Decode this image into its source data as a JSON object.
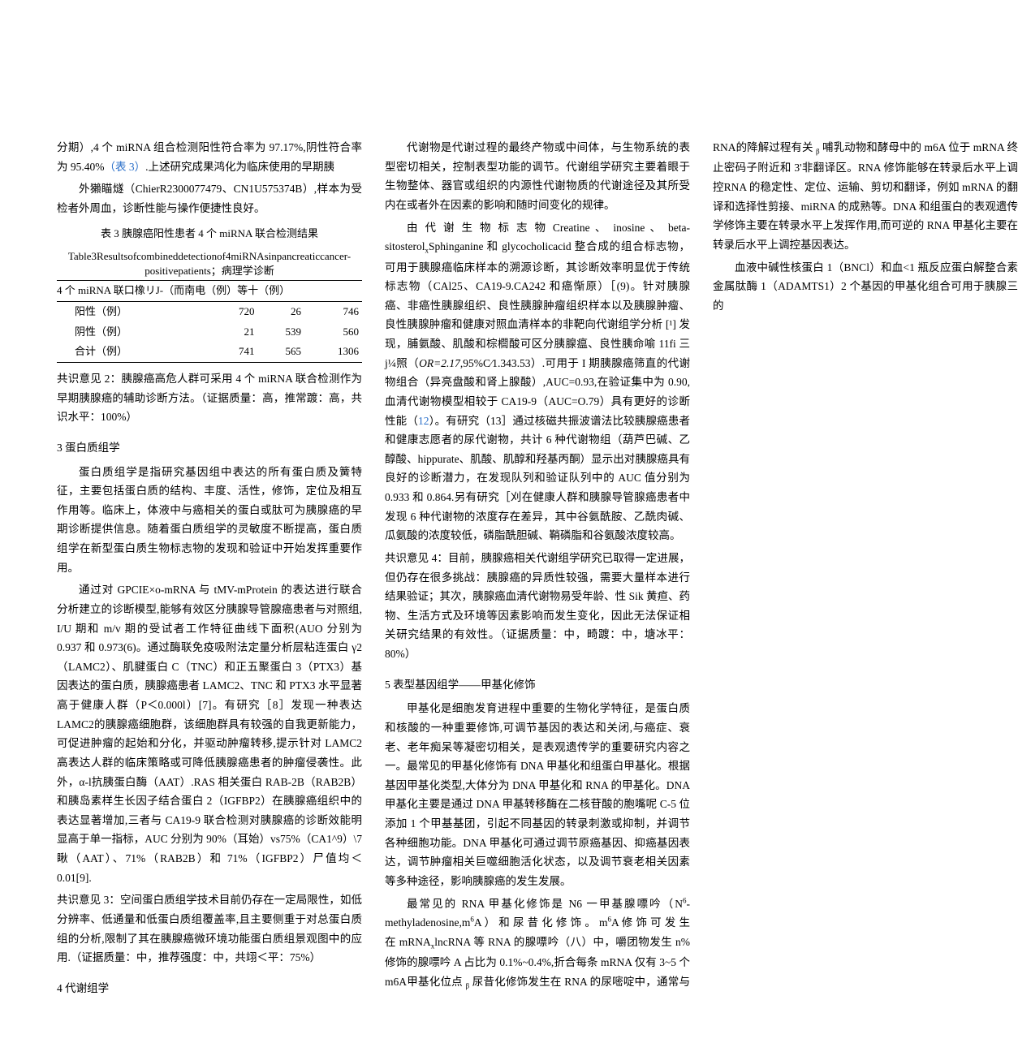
{
  "col1": {
    "p1a": "分期）,4 个 miRNA 组合检测阳性符合率为 97.17%,阴性符合率为 95.40%",
    "p1_link": "（表 3）",
    "p1b": ".上述研究成果鸿化为临床使用的早期胰",
    "p2": "外獺瞄燧（ChierR2300077479、CN1U575374B）,样本为受检者外周血，诊断性能与操作便捷性良好。",
    "table_caption1": "表 3 胰腺癌阳性患者 4 个 miRNA 联合检测结果",
    "table_caption2": "Table3Resultsofcombineddetectionof4miRNAsinpancreaticcancer-positivepatients；病理学诊断",
    "table_header": "4 个 miRNA 联口橡リJ-（而南电（例）等十（例）",
    "table": {
      "rows": [
        [
          "阳性（例）",
          "720",
          "26",
          "746"
        ],
        [
          "阴性（例）",
          "21",
          "539",
          "560"
        ],
        [
          "合计（例）",
          "741",
          "565",
          "1306"
        ]
      ]
    },
    "p3": "共识意见 2：胰腺癌高危人群可采用 4 个 miRNA 联合检测作为早期胰腺癌的辅助诊断方法。（证据质量：高，推常踱：高，共识水平：100%）",
    "h1": "3 蛋白质组学",
    "p4": "蛋白质组学是指研究基因组中表达的所有蛋白质及簧特征，主要包括蛋白质的结构、丰度、活性，修饰，定位及相互作用等。临床上，体液中与癌相关的蛋白或肽可为胰腺癌的早期诊断提供信息。随着蛋白质组学的灵敏度不断提高，蛋白质组学在新型蛋白质生物标志物的发现和验证中开始发挥重要作用。",
    "p5": "通过对 GPCIE×o-mRNA 与 tMV-mProtein 的表达进行联合分析建立的诊断模型,能够有效区分胰腺导管腺癌患者与对照组, I/U 期和 m/v 期的受试者工作特征曲线下面积(AUO 分别为 0.937 和 0.973(6)。通过酶联免疫吸附法定量分析层粘连蛋白 γ2（LAMC2）、肌腱蛋白 C（TNC）和正五聚蛋白 3（PTX3）基因表达的蛋白质，胰腺癌患者 LAMC2、TNC 和 PTX3 水平显著高于健康人群（P＜0.000l）[7]。有研究［8］发现一种表达 LAMC2的胰腺癌细胞群，该细胞群具有较强的自我更新能力，可促进肿瘤的起始和分化，并驱动肿瘤转移,提示针对 LAMC2 高表达人群的临床策略或可降低胰腺癌患者的肿瘤侵袭性。此外，α-l抗胰蛋白酶（AAT）.RAS 相关蛋白 RAB-2B（RAB2B）和胰岛素样生长因子结合蛋白 2（IGFBP2）在胰腺癌组织中的表达显著增加,三者与 CA19-9 联合检测对胰腺癌的诊断效能明显高于单一指标，AUC 分别为 90%（耳始）vs75%（CA1^9）\\7 瞅（AAT）、71%（RAB2B）和 71%（IGFBP2）尸值均＜0.01[9].",
    "p6": "共识意见 3：空间蛋白质组学技术目前仍存在一定局限性，如低分辨率、低通量和低蛋白质组覆盖率,且主要侧重于对总蛋白质组的分析,限制了其在胰腺癌微环境功能蛋白质组景观图中的应用.（证据质量：中，推荐强度：中，共翊＜平：75%）",
    "h2": "4 代谢组学",
    "p7": "代谢物是代谢过程的最终产物或中间体，与生物系统的表型密切相关，控制表型功能的调节。代谢组学研究主要着眼于生物整体、器官或组织的内源性代谢物质的代谢途径及其所受内在或者外在因素的影响和随时间变化的规律。"
  },
  "col2": {
    "p1a": "由 代 谢 生 物 标 志 物 Creatine 、 inosine 、 beta-sitosterol",
    "p1sub": "x",
    "p1b": "Sphinganine 和 glycocholicacid 整合成的组合标志物，可用于胰腺癌临床样本的溯源诊断，其诊断效率明显优于传统标志物（CAl25、CA19-9.CA242 和癌惭原）［(9)。针对胰腺癌、非癌性胰腺组织、良性胰腺肿瘤组织样本以及胰腺肿瘤、良性胰腺肿瘤和健康对照血清样本的非靶向代谢组学分析 [¹] 发现，脯氨酸、肌酸和棕櫚酸可区分胰腺瘟、良性胰命喻 11fi 三 j¼照（",
    "p1_or": "OR=2.17",
    "p1c": ",95%C∕1.343.53）.可用于 I 期胰腺癌筛直的代谢物组合（异亮盘酸和肾上腺酸）,AUC=0.93,在验证集中为 0.90,血清代谢物模型相较于 CA19-9（AUC=O.79）具有更好的诊断性能（",
    "p1_link": "12",
    "p1d": "）。有研究（13］通过核磁共振波谱法比较胰腺癌患者和健康志愿者的尿代谢物，共计 6 种代谢物组（葫芦巴碱、乙醇酸、hippurate、肌酸、肌醇和羟基丙酮）显示出对胰腺癌具有良好的诊断潜力，在发现队列和验证队列中的 AUC 值分别为 0.933 和 0.864.另有研究［刈在健康人群和胰腺导管腺癌患者中发现 6 种代谢物的浓度存在差异，其中谷氨酰胺、乙酰肉碱、瓜氨酸的浓度较低，磷脂酰胆碱、鞘磷脂和谷氨酸浓度较高。",
    "p2": "共识意见 4：目前，胰腺癌相关代谢组学研究已取得一定进展，但仍存在很多挑战：胰腺癌的异质性较强，需要大量样本进行结果验证；其次，胰腺癌血清代谢物易受年龄、性 Sik 黄疸、药物、生活方式及环境等因素影响而发生变化，因此无法保证相关研究结果的有效性。（证据质量：中，畸踱：中，塘冰平：80%）",
    "h1": "5 表型基因组学——甲基化修饰",
    "p3": "甲基化是细胞发育进程中重要的生物化学特征，是蛋白质和核酸的一种重要修饰,可调节基因的表达和关闭,与癌症、衰老、老年痴呆等凝密切相关，是表观遗传学的重要研究内容之一。最常见的甲基化修饰有 DNA 甲基化和组蛋白甲基化。根据基因甲基化类型,大体分为 DNA 甲基化和 RNA 的甲基化。DNA甲基化主要是通过 DNA 甲基转移酶在二核苷酸的胞嘴呢 C-5 位添加 1 个甲基基团，引起不同基因的转录刺激或抑制，并调节各种细胞功能。DNA 甲基化可通过调节原癌基因、抑癌基因表达，调节肿瘤相关巨噬细胞活化状态，以及调节衰老相关因素等多种途径，影响胰腺癌的发生发展。",
    "p4a": "最常见的 RNA 甲基化修饰是 N6 一甲基腺嘌吟（N",
    "p4sup1": "6",
    "p4b": "-methyladenosine,m",
    "p4sup2": "6",
    "p4c": "A ） 和 尿 昔 化 修 饰 。 m",
    "p4sup3": "6",
    "p4d": "A 修 饰 可 发 生 在 mRNA",
    "p4sub1": "x",
    "p4e": "lncRNA 等 RNA 的腺嘌吟（八）中，嚼团物发生 n%修饰的腺嘌吟 A 占比为 0.1%~0.4%,折合每条 mRNA 仅有 3~5 个 m6A甲基化位点 ",
    "p4sub2": "β",
    "p4f": " 尿昔化修饰发生在 RNA 的尿嘧啶中，通常与 RNA的降解过程有关 ",
    "p4sub3": "β",
    "p4g": " 哺乳动物和酵母中的 m6A 位于 mRNA 终止密码子附近和 3'非翻译区。RNA 修饰能够在转录后水平上调控RNA 的稳定性、定位、运输、剪切和翻译，例如 mRNA 的翻译和选择性剪接、miRNA 的成熟等。DNA 和组蛋白的表观遗传学修饰主要在转录水平上发挥作用,而可逆的 RNA 甲基化主要在转录后水平上调控基因表达。",
    "p5": "血液中碱性核蛋白 1（BNCl）和血<1 瓶反应蛋白解整合素金属肽酶 1（ADAMTS1）2 个基因的甲基化组合可用于胰腺三的"
  },
  "colors": {
    "text": "#000000",
    "link": "#2a6fc9",
    "background": "#ffffff"
  }
}
